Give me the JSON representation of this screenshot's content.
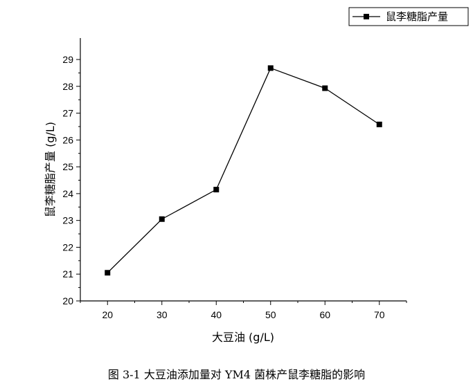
{
  "chart_data": {
    "type": "line",
    "x": [
      20,
      30,
      40,
      50,
      60,
      70
    ],
    "series": [
      {
        "name": "鼠李糖脂产量",
        "values": [
          21.05,
          23.05,
          24.15,
          28.68,
          27.93,
          26.58
        ],
        "color": "#000000",
        "marker": "square"
      }
    ],
    "xlabel": "大豆油 (g/L)",
    "ylabel": "鼠李糖脂产量 (g/L)",
    "xlim": [
      15,
      75
    ],
    "ylim": [
      20,
      29.8
    ],
    "xticks": [
      20,
      30,
      40,
      50,
      60,
      70
    ],
    "yticks": [
      20,
      21,
      22,
      23,
      24,
      25,
      26,
      27,
      28,
      29
    ],
    "grid": false,
    "legend_position": "top-right"
  },
  "caption": "图 3-1  大豆油添加量对 YM4 菌株产鼠李糖脂的影响"
}
